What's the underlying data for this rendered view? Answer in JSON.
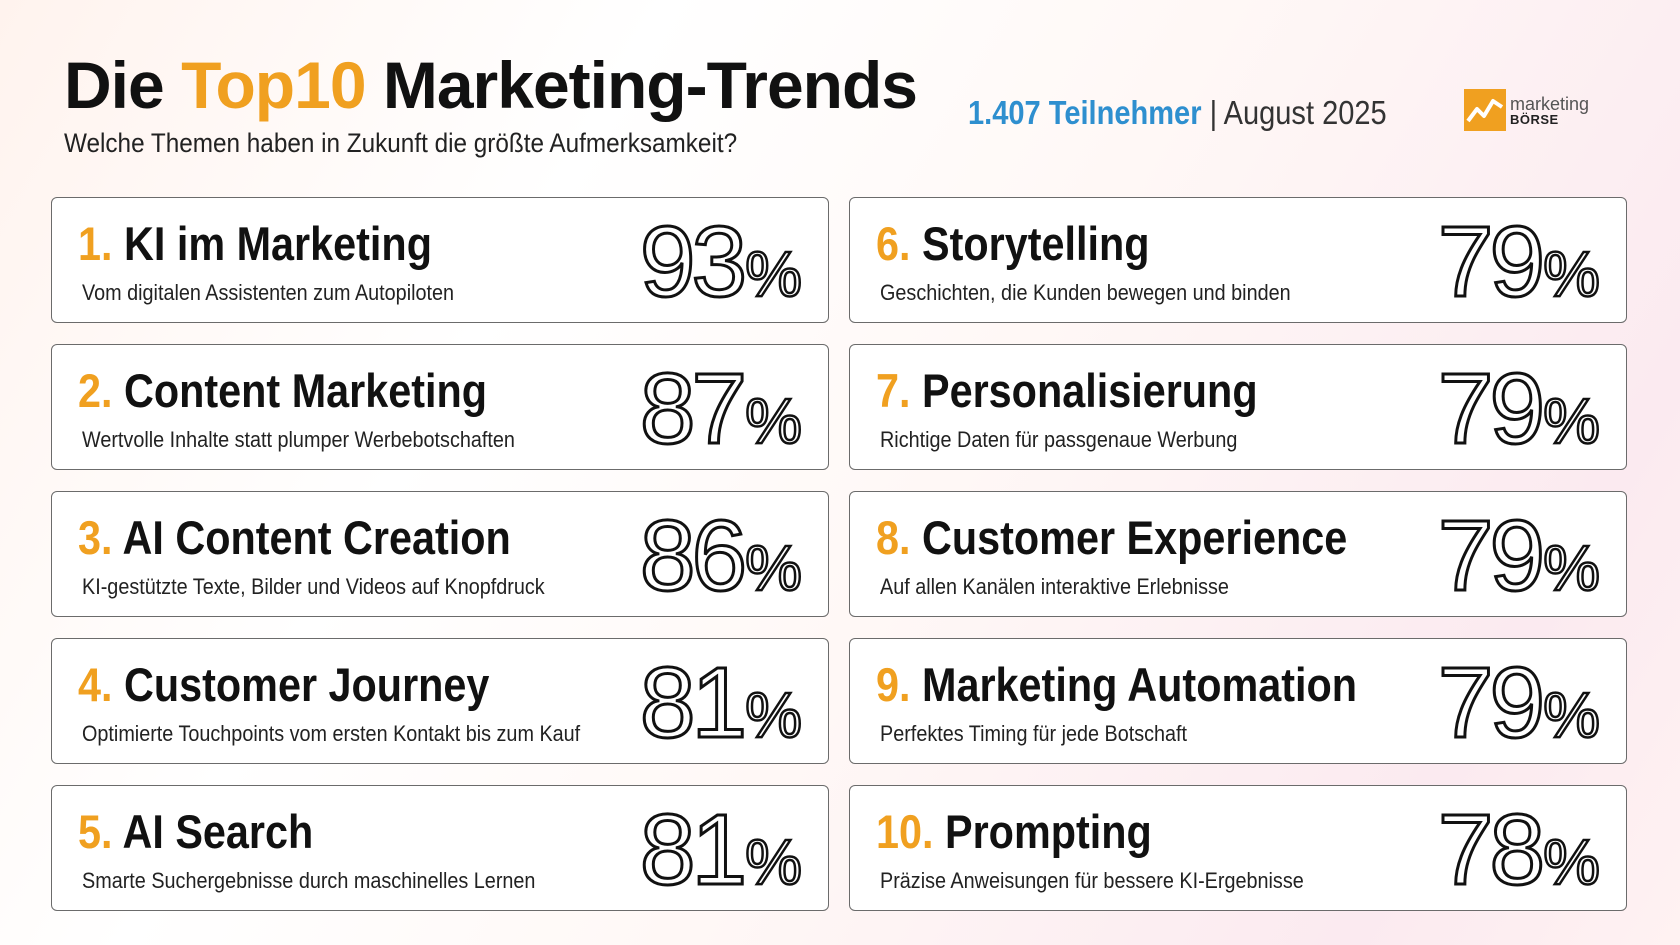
{
  "header": {
    "title_prefix": "Die",
    "title_accent": "Top10",
    "title_suffix": "Marketing-Trends",
    "subtitle": "Welche Themen haben in Zukunft die größte Aufmerksamkeit?",
    "participants": "1.407 Teilnehmer",
    "separator": "|",
    "date": "August 2025",
    "logo_top": "marketing",
    "logo_bottom": "BÖRSE"
  },
  "colors": {
    "accent": "#f0a020",
    "highlight_blue": "#2e8fcf"
  },
  "chart_data": {
    "type": "table",
    "title": "Die Top10 Marketing-Trends",
    "subtitle": "Welche Themen haben in Zukunft die größte Aufmerksamkeit?",
    "unit": "%",
    "items": [
      {
        "rank": "1.",
        "name": "KI im Marketing",
        "desc": "Vom digitalen Assistenten zum Autopiloten",
        "value": 93
      },
      {
        "rank": "2.",
        "name": "Content Marketing",
        "desc": "Wertvolle Inhalte statt plumper Werbebotschaften",
        "value": 87
      },
      {
        "rank": "3.",
        "name": "AI Content Creation",
        "desc": "KI-gestützte Texte, Bilder und Videos auf Knopfdruck",
        "value": 86
      },
      {
        "rank": "4.",
        "name": "Customer Journey",
        "desc": "Optimierte Touchpoints vom ersten Kontakt bis zum Kauf",
        "value": 81
      },
      {
        "rank": "5.",
        "name": "AI Search",
        "desc": "Smarte Suchergebnisse durch maschinelles Lernen",
        "value": 81
      },
      {
        "rank": "6.",
        "name": "Storytelling",
        "desc": "Geschichten, die Kunden bewegen und binden",
        "value": 79
      },
      {
        "rank": "7.",
        "name": "Personalisierung",
        "desc": "Richtige Daten für passgenaue Werbung",
        "value": 79
      },
      {
        "rank": "8.",
        "name": "Customer Experience",
        "desc": "Auf allen Kanälen interaktive Erlebnisse",
        "value": 79
      },
      {
        "rank": "9.",
        "name": "Marketing Automation",
        "desc": "Perfektes Timing für jede Botschaft",
        "value": 79
      },
      {
        "rank": "10.",
        "name": "Prompting",
        "desc": "Präzise Anweisungen für bessere KI-Ergebnisse",
        "value": 78
      }
    ]
  }
}
